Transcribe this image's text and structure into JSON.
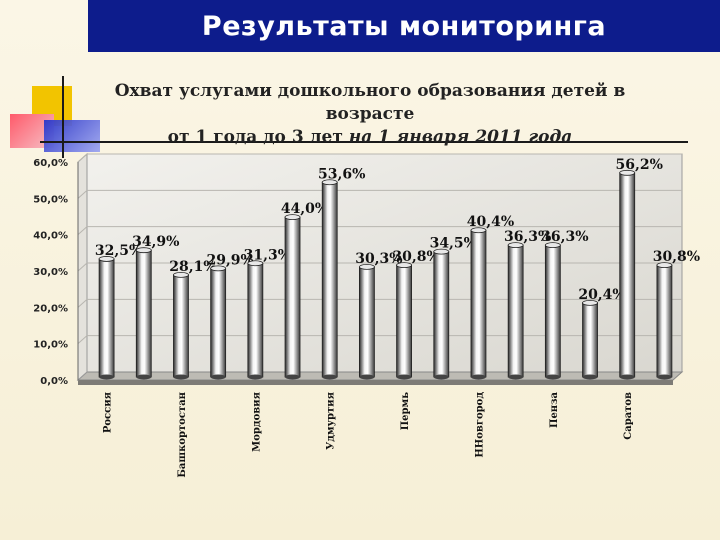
{
  "header": {
    "title": "Результаты мониторинга"
  },
  "chart_data": {
    "type": "bar",
    "title_line1": "Охват услугами дошкольного образования детей в возрасте",
    "title_line2_plain": "от 1 года до 3 лет ",
    "title_line2_italic": "на 1 января 2011 года",
    "ylim": [
      0,
      60
    ],
    "yticks": [
      "0,0%",
      "10,0%",
      "20,0%",
      "30,0%",
      "40,0%",
      "50,0%",
      "60,0%"
    ],
    "values": [
      32.5,
      34.9,
      28.1,
      29.9,
      31.3,
      44.0,
      53.6,
      30.3,
      30.8,
      34.5,
      40.4,
      36.3,
      36.3,
      20.4,
      56.2,
      30.8
    ],
    "value_labels": [
      "32,5%",
      "34,9%",
      "28,1%",
      "29,9%",
      "31,3%",
      "44,0%",
      "53,6%",
      "30,3%",
      "30,8%",
      "34,5%",
      "40,4%",
      "36,3%",
      "36,3%",
      "20,4%",
      "56,2%",
      "30,8%"
    ],
    "categories": [
      "Россия",
      "",
      "Башкортостан",
      "",
      "Мордовия",
      "",
      "Удмуртия",
      "",
      "Пермь",
      "",
      "ННовгород",
      "",
      "Пенза",
      "",
      "Саратов",
      ""
    ],
    "grid": true,
    "legend": "none"
  }
}
